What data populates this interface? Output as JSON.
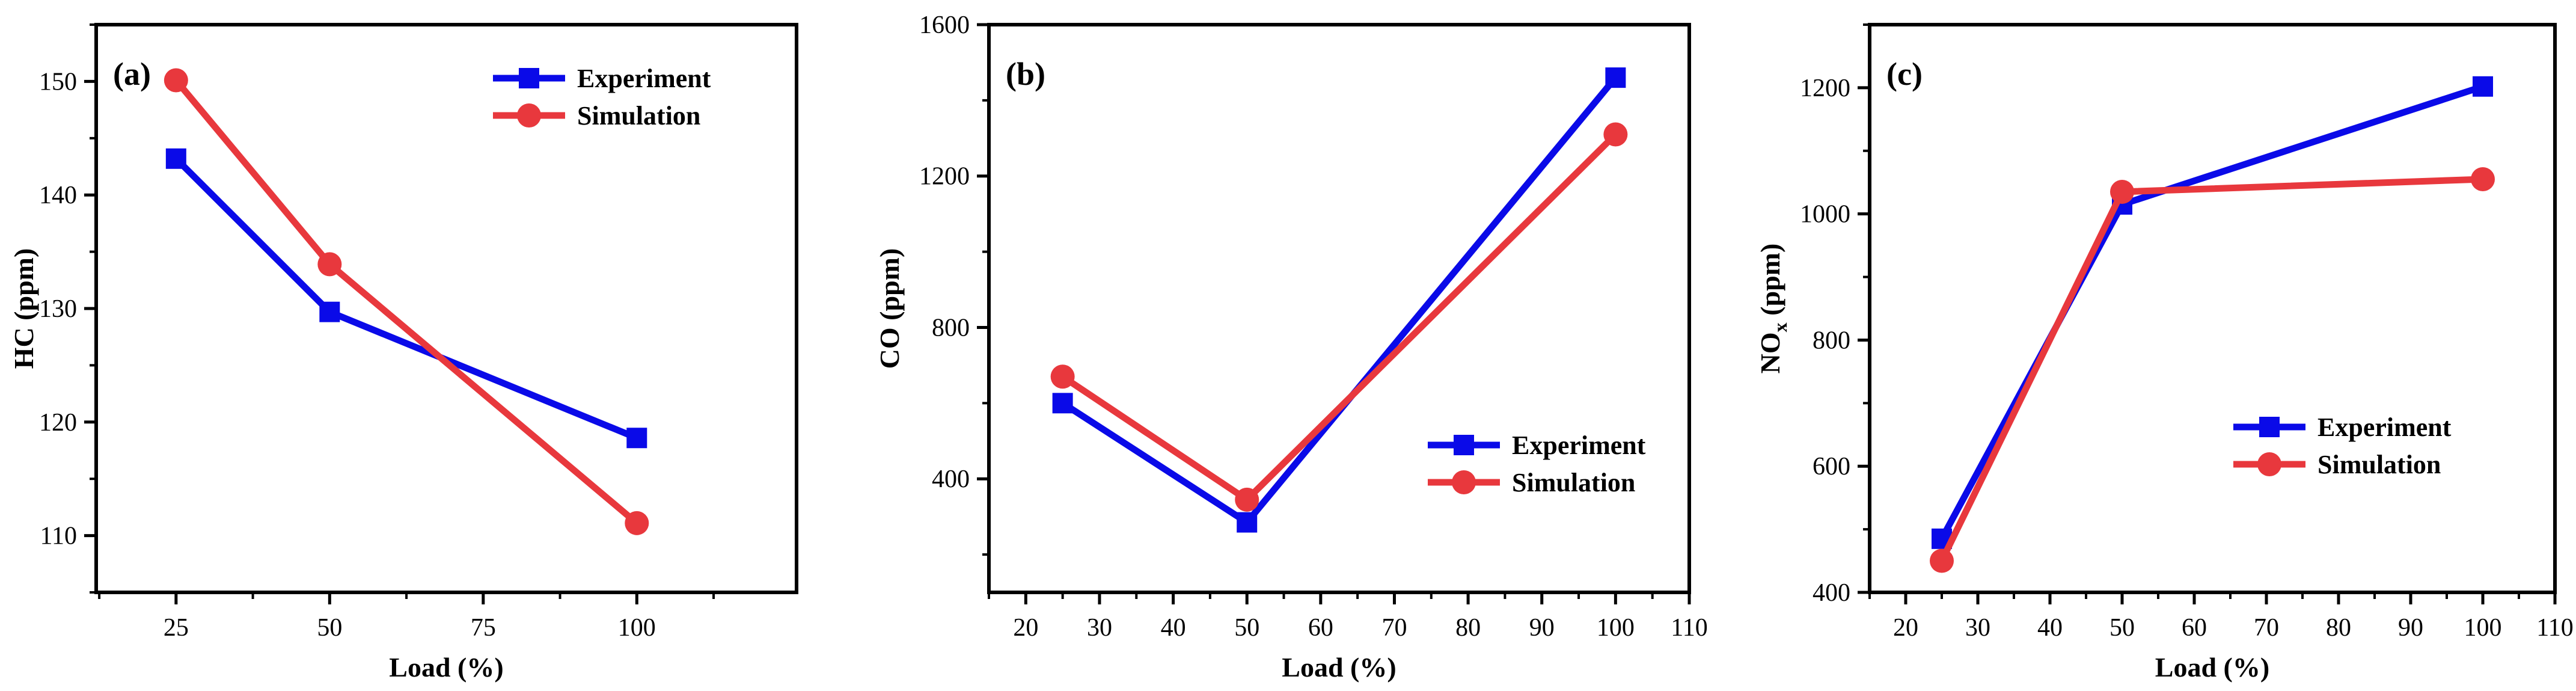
{
  "chart_data": [
    {
      "type": "line",
      "panel_label": "(a)",
      "xlabel": "Load (%)",
      "ylabel": "HC (ppm)",
      "xlim": [
        12,
        126
      ],
      "ylim": [
        105,
        155
      ],
      "xticks": [
        25,
        50,
        75,
        100
      ],
      "yticks": [
        110,
        120,
        130,
        140,
        150
      ],
      "legend_position": "top-right",
      "series": [
        {
          "name": "Experiment",
          "color": "#0a0ae8",
          "marker": "square",
          "x": [
            25,
            50,
            100
          ],
          "y": [
            143.2,
            129.7,
            118.6
          ]
        },
        {
          "name": "Simulation",
          "color": "#e8383d",
          "marker": "circle",
          "x": [
            25,
            50,
            100
          ],
          "y": [
            150.1,
            133.9,
            111.1
          ]
        }
      ]
    },
    {
      "type": "line",
      "panel_label": "(b)",
      "xlabel": "Load (%)",
      "ylabel": "CO (ppm)",
      "xlim": [
        15,
        110
      ],
      "ylim": [
        100,
        1600
      ],
      "xticks": [
        20,
        30,
        40,
        50,
        60,
        70,
        80,
        90,
        100,
        110
      ],
      "yticks": [
        400,
        800,
        1200,
        1600
      ],
      "legend_position": "center-right",
      "series": [
        {
          "name": "Experiment",
          "color": "#0a0ae8",
          "marker": "square",
          "x": [
            25,
            50,
            100
          ],
          "y": [
            600,
            285,
            1460
          ]
        },
        {
          "name": "Simulation",
          "color": "#e8383d",
          "marker": "circle",
          "x": [
            25,
            50,
            100
          ],
          "y": [
            670,
            345,
            1310
          ]
        }
      ]
    },
    {
      "type": "line",
      "panel_label": "(c)",
      "xlabel": "Load (%)",
      "ylabel": "NOx (ppm)",
      "ylabel_main": "NO",
      "ylabel_sub": "x",
      "ylabel_rest": " (ppm)",
      "xlim": [
        15,
        110
      ],
      "ylim": [
        400,
        1300
      ],
      "xticks": [
        20,
        30,
        40,
        50,
        60,
        70,
        80,
        90,
        100,
        110
      ],
      "yticks": [
        400,
        600,
        800,
        1000,
        1200
      ],
      "legend_position": "center-right",
      "series": [
        {
          "name": "Experiment",
          "color": "#0a0ae8",
          "marker": "square",
          "x": [
            25,
            50,
            100
          ],
          "y": [
            485,
            1015,
            1202
          ]
        },
        {
          "name": "Simulation",
          "color": "#e8383d",
          "marker": "circle",
          "x": [
            25,
            50,
            100
          ],
          "y": [
            450,
            1035,
            1055
          ]
        }
      ]
    }
  ]
}
